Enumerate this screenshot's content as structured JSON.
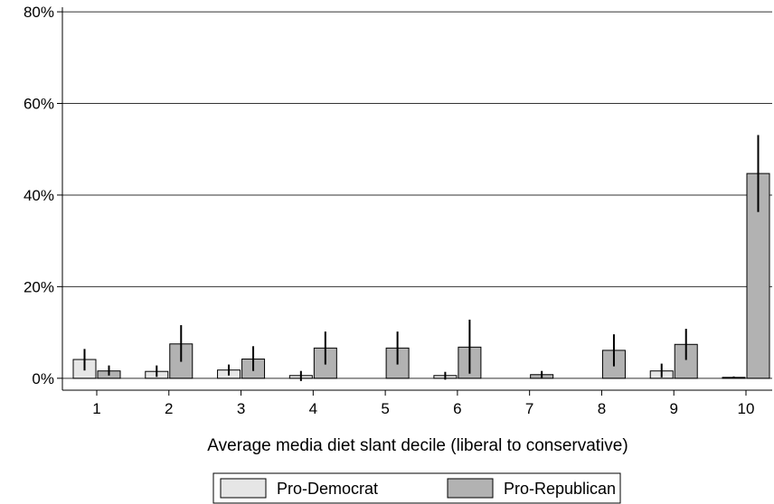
{
  "chart_data": {
    "type": "bar",
    "title": "",
    "xlabel": "Average media diet slant decile (liberal to conservative)",
    "ylabel": "",
    "categories": [
      "1",
      "2",
      "3",
      "4",
      "5",
      "6",
      "7",
      "8",
      "9",
      "10"
    ],
    "yticks": [
      {
        "value": 0,
        "label": "0%"
      },
      {
        "value": 20,
        "label": "20%"
      },
      {
        "value": 40,
        "label": "40%"
      },
      {
        "value": 60,
        "label": "60%"
      },
      {
        "value": 80,
        "label": "80%"
      }
    ],
    "ylim": [
      -2.6,
      81
    ],
    "grid": true,
    "legend_position": "bottom",
    "series": [
      {
        "name": "Pro-Democrat",
        "color": "#e6e6e6",
        "values": [
          4.1,
          1.5,
          1.8,
          0.6,
          null,
          0.6,
          null,
          null,
          1.6,
          0.2
        ],
        "error_low": [
          1.7,
          0.3,
          0.6,
          -0.6,
          null,
          -0.3,
          null,
          null,
          0.2,
          0.0
        ],
        "error_high": [
          6.4,
          2.8,
          3.0,
          1.6,
          null,
          1.4,
          null,
          null,
          3.2,
          0.4
        ]
      },
      {
        "name": "Pro-Republican",
        "color": "#b2b2b2",
        "values": [
          1.6,
          7.5,
          4.2,
          6.6,
          6.6,
          6.8,
          0.8,
          6.1,
          7.4,
          44.7
        ],
        "error_low": [
          0.6,
          3.6,
          1.6,
          3.0,
          3.0,
          1.0,
          0.0,
          2.6,
          4.0,
          36.3
        ],
        "error_high": [
          2.8,
          11.6,
          7.0,
          10.2,
          10.2,
          12.8,
          1.6,
          9.6,
          10.8,
          53.1
        ]
      }
    ]
  }
}
